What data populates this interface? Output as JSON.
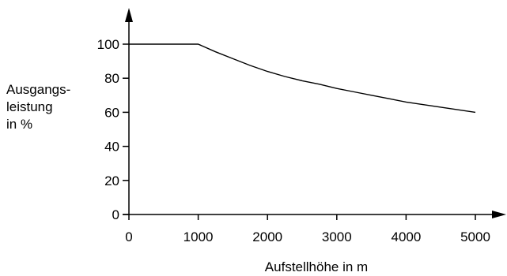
{
  "chart_data": {
    "type": "line",
    "title": "",
    "xlabel": "Aufstellhöhe in m",
    "ylabel_lines": [
      "Ausgangs-",
      "leistung",
      "in %"
    ],
    "xlim": [
      0,
      5000
    ],
    "ylim": [
      0,
      100
    ],
    "x_ticks": [
      0,
      1000,
      2000,
      3000,
      4000,
      5000
    ],
    "y_ticks": [
      0,
      20,
      40,
      60,
      80,
      100
    ],
    "grid": false,
    "legend": "none",
    "series": [
      {
        "x": [
          0,
          1000,
          1250,
          1500,
          1750,
          2000,
          2250,
          2500,
          2750,
          3000,
          3250,
          3500,
          3750,
          4000,
          4250,
          4500,
          4750,
          5000
        ],
        "y": [
          100,
          100,
          95.5,
          91.5,
          87.5,
          84,
          81,
          78.5,
          76.5,
          74,
          72,
          70,
          68,
          66,
          64.5,
          63,
          61.5,
          60
        ]
      }
    ]
  },
  "colors": {
    "line": "#000000",
    "axis": "#000000"
  }
}
